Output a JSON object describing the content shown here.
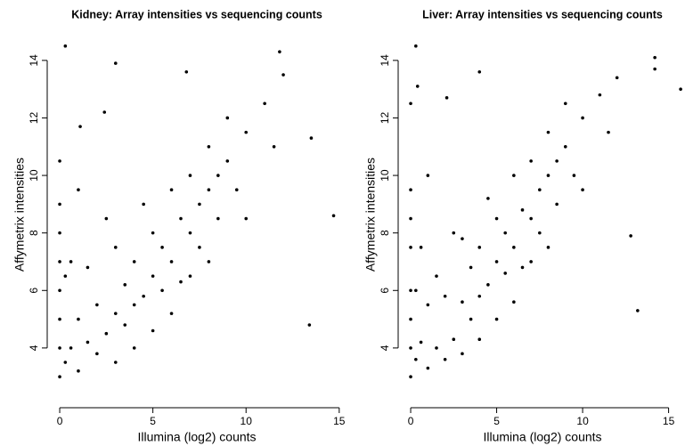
{
  "chart_data": [
    {
      "type": "scatter",
      "title": "Kidney: Array intensities vs sequencing counts",
      "x_label": "Illumina (log2) counts",
      "y_label": "Affymetrix intensities",
      "color": "#000000",
      "xlim": [
        -0.48,
        15.2
      ],
      "ylim": [
        2.17,
        15.11
      ],
      "xticks": [
        0,
        5,
        10,
        15
      ],
      "yticks": [
        4,
        6,
        8,
        10,
        12,
        14
      ],
      "x": [
        0,
        0,
        0,
        0,
        0,
        0,
        0,
        0,
        0.3,
        0.3,
        0.6,
        0.6,
        1,
        1,
        1,
        1.5,
        1.5,
        2,
        2,
        2.5,
        2.5,
        3,
        3,
        3,
        3.5,
        3.5,
        4,
        4,
        4,
        4.5,
        4.5,
        5,
        5,
        5,
        5.5,
        5.5,
        6,
        6,
        6,
        6.5,
        6.5,
        7,
        7,
        7,
        7.5,
        7.5,
        8,
        8,
        8,
        8.5,
        8.5,
        9,
        9,
        9.5,
        10,
        10,
        11,
        11.5,
        12,
        13.4,
        13.5,
        14.7,
        0.3,
        3,
        11.8,
        2.4,
        1.1,
        6.8
      ],
      "y": [
        3,
        4,
        5,
        6,
        7,
        8,
        9,
        10.5,
        3.5,
        6.5,
        4,
        7,
        3.2,
        5,
        9.5,
        4.2,
        6.8,
        3.8,
        5.5,
        4.5,
        8.5,
        3.5,
        5.2,
        7.5,
        4.8,
        6.2,
        5.5,
        4,
        7,
        5.8,
        9,
        6.5,
        4.6,
        8,
        6,
        7.5,
        7,
        9.5,
        5.2,
        8.5,
        6.3,
        8,
        10,
        6.5,
        9,
        7.5,
        9.5,
        11,
        7,
        10,
        8.5,
        10.5,
        12,
        9.5,
        11.5,
        8.5,
        12.5,
        11,
        13.5,
        4.8,
        11.3,
        8.6,
        14.5,
        13.9,
        14.3,
        12.2,
        11.7,
        13.6
      ]
    },
    {
      "type": "scatter",
      "title": "Liver: Array intensities vs sequencing counts",
      "x_label": "Illumina (log2) counts",
      "y_label": "Affymetrix intensities",
      "color": "#000000",
      "xlim": [
        -0.52,
        15.85
      ],
      "ylim": [
        2.17,
        15.11
      ],
      "xticks": [
        0,
        5,
        10,
        15
      ],
      "yticks": [
        4,
        6,
        8,
        10,
        12,
        14
      ],
      "x": [
        0,
        0,
        0,
        0,
        0,
        0,
        0,
        0,
        0.3,
        0.3,
        0.6,
        0.6,
        1,
        1,
        1,
        1.5,
        1.5,
        2,
        2,
        2.5,
        2.5,
        3,
        3,
        3,
        3.5,
        3.5,
        4,
        4,
        4,
        4.5,
        4.5,
        5,
        5,
        5,
        5.5,
        5.5,
        6,
        6,
        6,
        6.5,
        6.5,
        7,
        7,
        7,
        7.5,
        7.5,
        8,
        8,
        8,
        8.5,
        8.5,
        9,
        9,
        9.5,
        10,
        10,
        11,
        11.5,
        12,
        13.2,
        15.7,
        14.2,
        0.3,
        12.8,
        14.2,
        4,
        2.1,
        0.4
      ],
      "y": [
        3,
        4,
        5,
        6,
        7.5,
        8.5,
        9.5,
        12.5,
        3.6,
        6,
        4.2,
        7.5,
        3.3,
        5.5,
        10,
        4,
        6.5,
        3.6,
        5.8,
        4.3,
        8,
        3.8,
        5.6,
        7.8,
        5,
        6.8,
        5.8,
        4.3,
        7.5,
        6.2,
        9.2,
        7,
        5,
        8.5,
        6.6,
        8,
        7.5,
        10,
        5.6,
        8.8,
        6.8,
        8.5,
        10.5,
        7,
        9.5,
        8,
        10,
        11.5,
        7.5,
        10.5,
        9,
        11,
        12.5,
        10,
        12,
        9.5,
        12.8,
        11.5,
        13.4,
        5.3,
        13,
        14.1,
        14.5,
        7.9,
        13.7,
        13.6,
        12.7,
        13.1
      ]
    }
  ]
}
